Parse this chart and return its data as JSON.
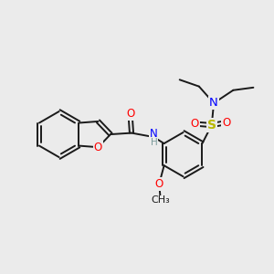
{
  "background_color": "#ebebeb",
  "bond_color": "#1a1a1a",
  "atom_colors": {
    "O": "#ff0000",
    "N": "#0000ff",
    "S": "#b8b800",
    "H": "#7a9a9a",
    "C": "#1a1a1a"
  },
  "font_size": 8.5,
  "figsize": [
    3.0,
    3.0
  ],
  "dpi": 100
}
